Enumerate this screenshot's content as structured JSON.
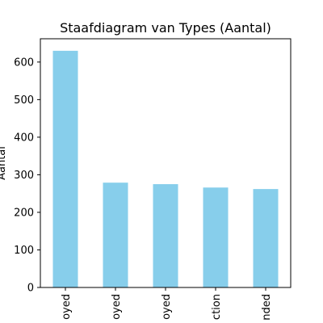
{
  "chart_data": {
    "type": "bar",
    "title": "Staafdiagram van Types (Aantal)",
    "xlabel": "",
    "ylabel": "Aantal",
    "categories": [
      "oyed",
      "oyed",
      "oyed",
      "ction",
      "nded"
    ],
    "values": [
      630,
      279,
      275,
      266,
      262
    ],
    "ylim": [
      0,
      662
    ],
    "yticks": [
      0,
      100,
      200,
      300,
      400,
      500,
      600
    ],
    "bar_color": "#87ceeb",
    "grid": false,
    "legend": "none"
  }
}
